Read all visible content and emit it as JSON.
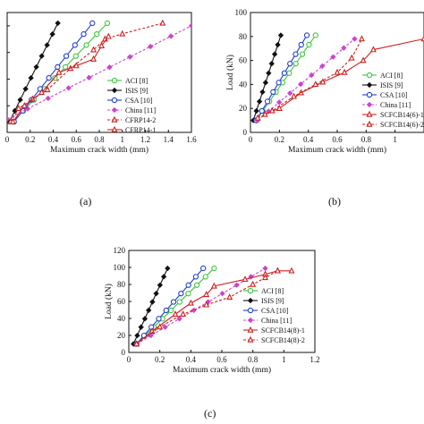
{
  "panel_labels": [
    "(a)",
    "(b)",
    "(c)"
  ],
  "chart_data": [
    {
      "type": "line",
      "panel": "(a)",
      "xlabel": "Maximum crack width (mm)",
      "ylabel": "",
      "xlim": [
        0,
        1.6
      ],
      "ylim": [
        0,
        90
      ],
      "xticks": [
        "0",
        "0.2",
        "0.4",
        "0.6",
        "0.8",
        "1",
        "1.2",
        "1.4",
        "1.6"
      ],
      "yticks": [],
      "legend_position": "right",
      "series": [
        {
          "name": "ACI [8]",
          "color": "#3cc83c",
          "marker": "circle",
          "x": [
            0.05,
            0.87
          ],
          "y": [
            8,
            82
          ]
        },
        {
          "name": "ISIS [9]",
          "color": "#111111",
          "marker": "diamond",
          "x": [
            0.02,
            0.44
          ],
          "y": [
            8,
            82
          ]
        },
        {
          "name": "CSA [10]",
          "color": "#1f3fd0",
          "marker": "circle",
          "x": [
            0.06,
            0.74
          ],
          "y": [
            8,
            82
          ]
        },
        {
          "name": "China [11]",
          "color": "#cc44cc",
          "marker": "diamond",
          "dash": true,
          "x": [
            0.0,
            1.6
          ],
          "y": [
            10,
            80
          ]
        },
        {
          "name": "CFRP14-2",
          "color": "#d02020",
          "marker": "triangle",
          "dash": true,
          "x": [
            0.03,
            0.1,
            0.22,
            0.35,
            0.55,
            0.75,
            0.85,
            1.0,
            1.35
          ],
          "y": [
            8,
            18,
            25,
            32,
            48,
            62,
            70,
            74,
            82
          ]
        },
        {
          "name": "CFRP14-1",
          "color": "#d02020",
          "marker": "triangle",
          "x": [
            0.05,
            0.15,
            0.3,
            0.45,
            0.6,
            0.75,
            0.82,
            0.88
          ],
          "y": [
            8,
            20,
            30,
            45,
            50,
            55,
            65,
            72
          ]
        }
      ]
    },
    {
      "type": "line",
      "panel": "(b)",
      "xlabel": "Maximum crack width (mm)",
      "ylabel": "Load (kN)",
      "xlim": [
        0,
        1.2
      ],
      "ylim": [
        0,
        100
      ],
      "xticks": [
        "0",
        "0.2",
        "0.4",
        "0.6",
        "0.8",
        "1"
      ],
      "yticks": [
        "0",
        "20",
        "40",
        "60",
        "80",
        "100"
      ],
      "legend_position": "right",
      "series": [
        {
          "name": "ACI [8]",
          "color": "#3cc83c",
          "marker": "circle",
          "x": [
            0.04,
            0.45
          ],
          "y": [
            10,
            81
          ]
        },
        {
          "name": "ISIS [9]",
          "color": "#111111",
          "marker": "diamond",
          "x": [
            0.02,
            0.21
          ],
          "y": [
            10,
            81
          ]
        },
        {
          "name": "CSA [10]",
          "color": "#1f3fd0",
          "marker": "circle",
          "x": [
            0.04,
            0.39
          ],
          "y": [
            10,
            81
          ]
        },
        {
          "name": "China [11]",
          "color": "#cc44cc",
          "marker": "diamond",
          "dash": true,
          "x": [
            0.05,
            0.72
          ],
          "y": [
            10,
            78
          ]
        },
        {
          "name": "SCFCB14(6)-1",
          "color": "#d02020",
          "marker": "triangle",
          "x": [
            0.1,
            0.2,
            0.35,
            0.5,
            0.65,
            0.78,
            0.85,
            1.2
          ],
          "y": [
            15,
            20,
            33,
            42,
            50,
            60,
            69,
            78
          ]
        },
        {
          "name": "SCFCB14(6)-2",
          "color": "#d02020",
          "marker": "triangle",
          "dash": true,
          "x": [
            0.05,
            0.15,
            0.3,
            0.45,
            0.6,
            0.7,
            0.77
          ],
          "y": [
            12,
            18,
            30,
            40,
            50,
            62,
            78
          ]
        }
      ]
    },
    {
      "type": "line",
      "panel": "(c)",
      "xlabel": "Maximum crack width (mm)",
      "ylabel": "Load (kN)",
      "xlim": [
        0,
        1.2
      ],
      "ylim": [
        0,
        120
      ],
      "xticks": [
        "0",
        "0.2",
        "0.4",
        "0.6",
        "0.8",
        "1",
        "1.2"
      ],
      "yticks": [
        "0",
        "20",
        "40",
        "60",
        "80",
        "100",
        "120"
      ],
      "legend_position": "right",
      "series": [
        {
          "name": "ACI [8]",
          "color": "#3cc83c",
          "marker": "circle",
          "x": [
            0.05,
            0.55
          ],
          "y": [
            10,
            99
          ]
        },
        {
          "name": "ISIS [9]",
          "color": "#111111",
          "marker": "diamond",
          "x": [
            0.03,
            0.25
          ],
          "y": [
            10,
            99
          ]
        },
        {
          "name": "CSA [10]",
          "color": "#1f3fd0",
          "marker": "circle",
          "x": [
            0.05,
            0.48
          ],
          "y": [
            10,
            99
          ]
        },
        {
          "name": "China [11]",
          "color": "#cc44cc",
          "marker": "diamond",
          "dash": true,
          "x": [
            0.05,
            0.88
          ],
          "y": [
            10,
            99
          ]
        },
        {
          "name": "SCFCB14(8)-1",
          "color": "#d02020",
          "marker": "triangle",
          "x": [
            0.05,
            0.15,
            0.3,
            0.4,
            0.5,
            0.55,
            0.75,
            0.88,
            0.96,
            1.05
          ],
          "y": [
            10,
            25,
            45,
            58,
            68,
            78,
            86,
            92,
            96,
            96
          ]
        },
        {
          "name": "SCFCB14(8)-2",
          "color": "#d02020",
          "marker": "triangle",
          "dash": true,
          "x": [
            0.05,
            0.2,
            0.35,
            0.5,
            0.65,
            0.8,
            0.88,
            0.96
          ],
          "y": [
            10,
            30,
            45,
            56,
            65,
            80,
            88,
            96
          ]
        }
      ]
    }
  ]
}
